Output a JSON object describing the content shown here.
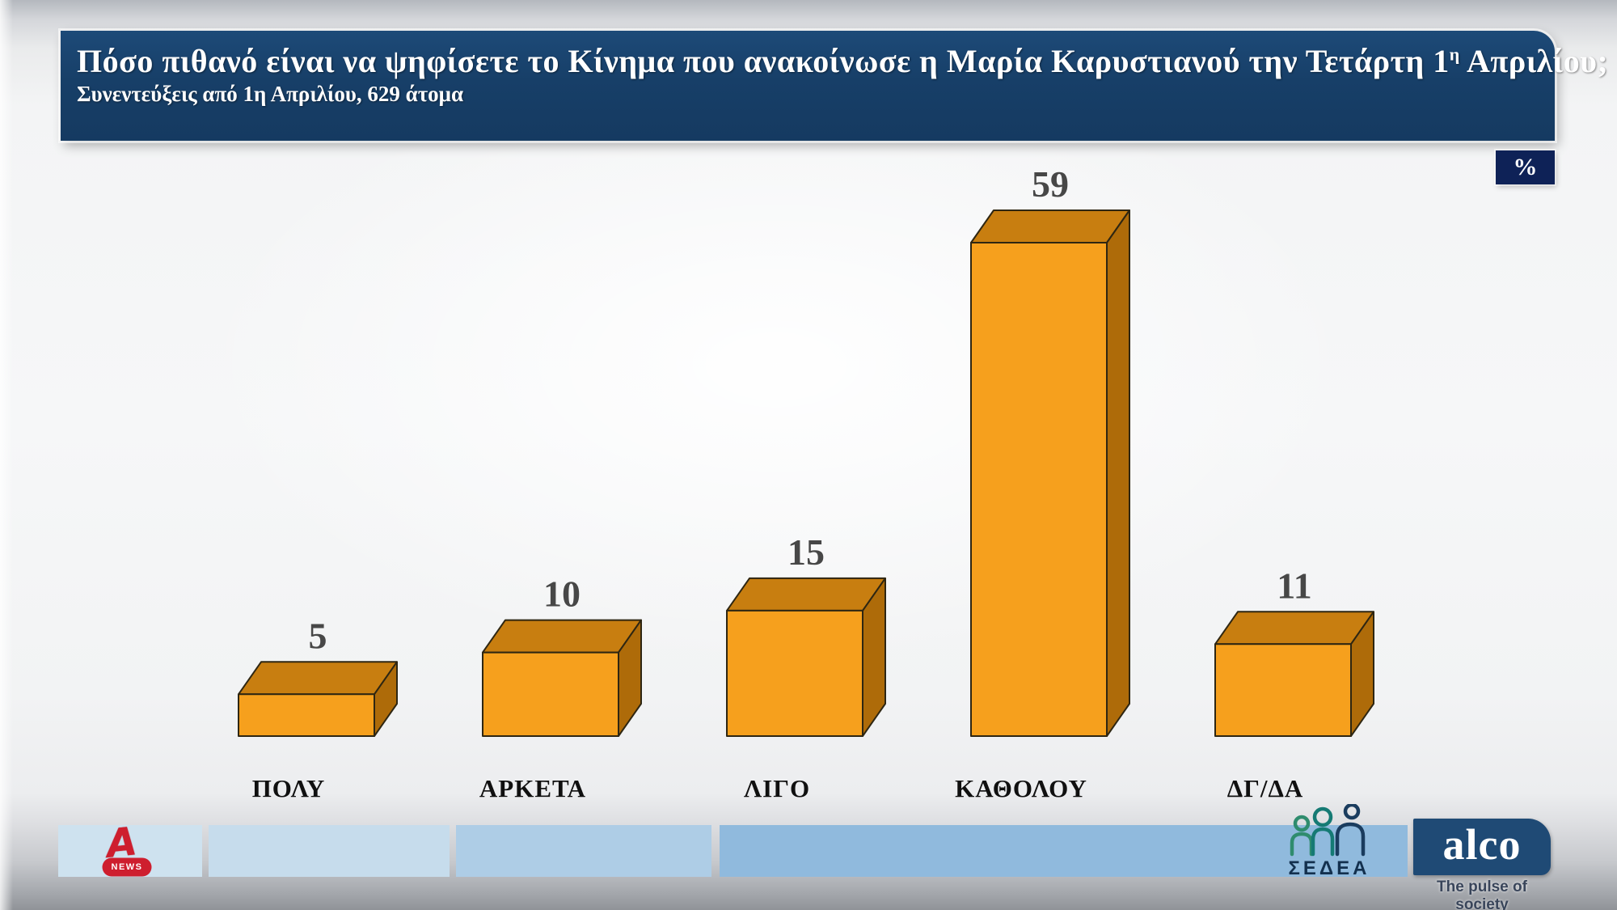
{
  "header": {
    "title_prefix": "Πόσο πιθανό είναι να ψηφίσετε το Κίνημα που ανακοίνωσε η Μαρία Καρυστιανού την Τετάρτη 1",
    "title_sup": "η",
    "title_suffix": " Απριλίου;",
    "subtitle": "Συνεντεύξεις από 1η Απριλίου, 629 άτομα"
  },
  "unit_badge": "%",
  "chart_data": {
    "type": "bar",
    "projection": "3d",
    "title": "Πόσο πιθανό είναι να ψηφίσετε το Κίνημα που ανακοίνωσε η Μαρία Καρυστιανού την Τετάρτη 1η Απριλίου;",
    "subtitle": "Συνεντεύξεις από 1η Απριλίου, 629 άτομα",
    "categories": [
      "ΠΟΛΥ",
      "ΑΡΚΕΤΑ",
      "ΛΙΓΟ",
      "ΚΑΘΟΛΟΥ",
      "ΔΓ/ΔΑ"
    ],
    "values": [
      5,
      10,
      15,
      59,
      11
    ],
    "value_unit": "%",
    "legend": "none",
    "grid": "off",
    "colors": {
      "front": "#f6a01d",
      "top": "#c87e10",
      "side": "#ae6b09",
      "outline": "#2e2612",
      "value_label": "#474747",
      "category_label": "#101010"
    }
  },
  "footer": {
    "alpha_logo_letter": "Α",
    "alpha_news_label": "NEWS",
    "sedea_label": "ΣΕΔΕΑ",
    "alco_name": "alco",
    "alco_tagline": "The pulse of society"
  }
}
